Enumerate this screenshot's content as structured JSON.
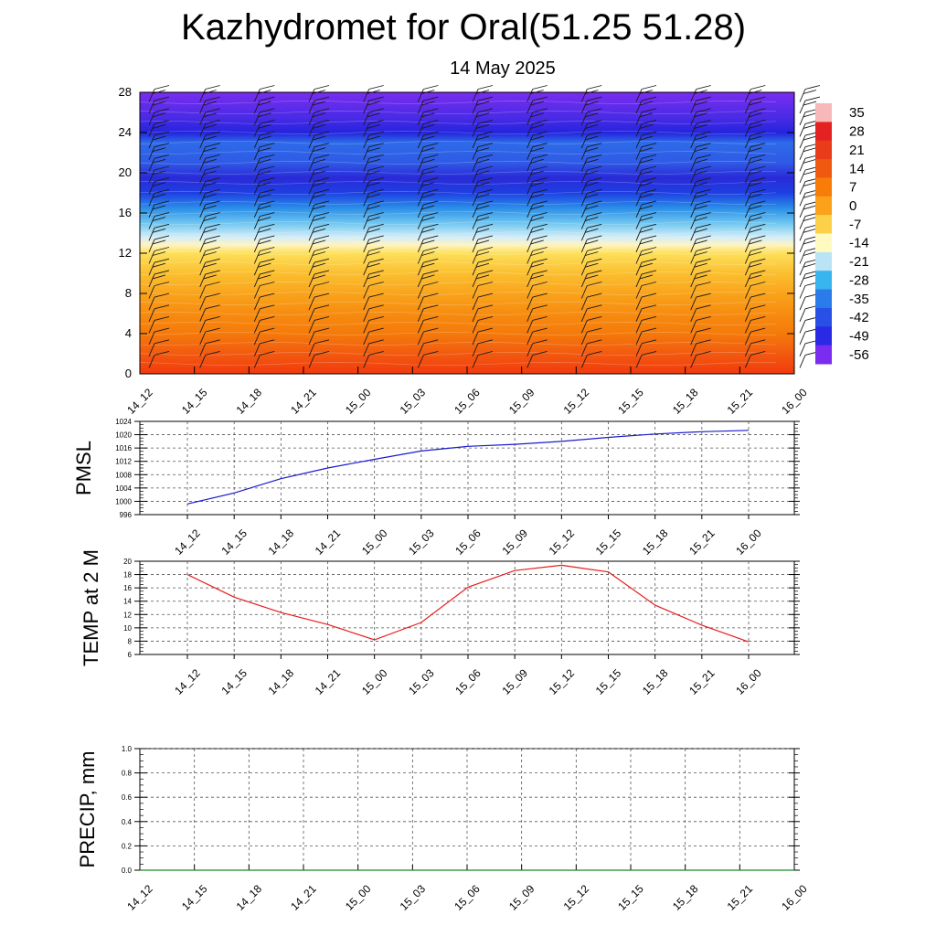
{
  "header": {
    "title": "Kazhydromet for Oral(51.25 51.28)",
    "date": "14 May 2025"
  },
  "chart_data": [
    {
      "type": "heatmap",
      "id": "temperature-section",
      "x_ticks": [
        "14_12",
        "14_15",
        "14_18",
        "14_21",
        "15_00",
        "15_03",
        "15_06",
        "15_09",
        "15_12",
        "15_15",
        "15_18",
        "15_21",
        "16_00"
      ],
      "y_ticks": [
        0,
        4,
        8,
        12,
        16,
        20,
        24,
        28
      ],
      "ylim": [
        0,
        28
      ],
      "colorbar": {
        "labels": [
          "35",
          "28",
          "21",
          "14",
          "7",
          "0",
          "-7",
          "-14",
          "-21",
          "-28",
          "-35",
          "-42",
          "-49",
          "-56"
        ],
        "colors": [
          "#f6b8b8",
          "#e52222",
          "#e83c1a",
          "#f05a10",
          "#f77c08",
          "#fba21a",
          "#fdd04a",
          "#fffbc0",
          "#b8e4f6",
          "#38b4ee",
          "#2a7cea",
          "#2850e6",
          "#2a2ae4",
          "#7a2cf0"
        ]
      },
      "bands": [
        {
          "level": 0,
          "color": "#f13a0e"
        },
        {
          "level": 2,
          "color": "#f25a10"
        },
        {
          "level": 4,
          "color": "#f57a0a"
        },
        {
          "level": 6,
          "color": "#f78c10"
        },
        {
          "level": 8,
          "color": "#f9a41c"
        },
        {
          "level": 10,
          "color": "#fbbf30"
        },
        {
          "level": 12,
          "color": "#fde05a"
        },
        {
          "level": 12.8,
          "color": "#fff3bf"
        },
        {
          "level": 13.6,
          "color": "#d4eef8"
        },
        {
          "level": 15,
          "color": "#6fc6f0"
        },
        {
          "level": 16.5,
          "color": "#2a8de8"
        },
        {
          "level": 18,
          "color": "#1e3fe2"
        },
        {
          "level": 19.5,
          "color": "#2a2ad8"
        },
        {
          "level": 21,
          "color": "#2f5ae6"
        },
        {
          "level": 23,
          "color": "#2d6be8"
        },
        {
          "level": 24,
          "color": "#2424de"
        },
        {
          "level": 25.5,
          "color": "#4a2be6"
        },
        {
          "level": 28,
          "color": "#7a2cf0"
        }
      ]
    },
    {
      "type": "line",
      "id": "pmsl",
      "ylabel": "PMSL",
      "x": [
        "14_12",
        "14_15",
        "14_18",
        "14_21",
        "15_00",
        "15_03",
        "15_06",
        "15_09",
        "15_12",
        "15_15",
        "15_18",
        "15_21",
        "16_00"
      ],
      "y": [
        999.2,
        1002.5,
        1006.8,
        1010.0,
        1012.6,
        1015.1,
        1016.5,
        1017.1,
        1018.0,
        1019.2,
        1020.2,
        1020.9,
        1021.3
      ],
      "ylim": [
        996,
        1024
      ],
      "y_ticks": [
        996,
        1000,
        1004,
        1008,
        1012,
        1016,
        1020,
        1024
      ],
      "color": "#1a1ad0",
      "grid": true
    },
    {
      "type": "line",
      "id": "temp2m",
      "ylabel": "TEMP at 2 M",
      "x": [
        "14_12",
        "14_15",
        "14_18",
        "14_21",
        "15_00",
        "15_03",
        "15_06",
        "15_09",
        "15_12",
        "15_15",
        "15_18",
        "15_21",
        "16_00"
      ],
      "y": [
        18.0,
        14.6,
        12.3,
        10.5,
        8.2,
        10.8,
        16.1,
        18.6,
        19.4,
        18.4,
        13.4,
        10.4,
        7.9
      ],
      "ylim": [
        6,
        20
      ],
      "y_ticks": [
        6,
        8,
        10,
        12,
        14,
        16,
        18,
        20
      ],
      "color": "#e81c1c",
      "grid": true
    },
    {
      "type": "line",
      "id": "precip",
      "ylabel": "PRECIP, mm",
      "x": [
        "14_12",
        "14_15",
        "14_18",
        "14_21",
        "15_00",
        "15_03",
        "15_06",
        "15_09",
        "15_12",
        "15_15",
        "15_18",
        "15_21",
        "16_00"
      ],
      "y": [
        0,
        0,
        0,
        0,
        0,
        0,
        0,
        0,
        0,
        0,
        0,
        0,
        0
      ],
      "ylim": [
        0,
        1
      ],
      "y_ticks": [
        "0.0",
        "0.2",
        "0.4",
        "0.6",
        "0.8",
        "1.0"
      ],
      "color": "#1a8a2a",
      "grid": true
    }
  ]
}
